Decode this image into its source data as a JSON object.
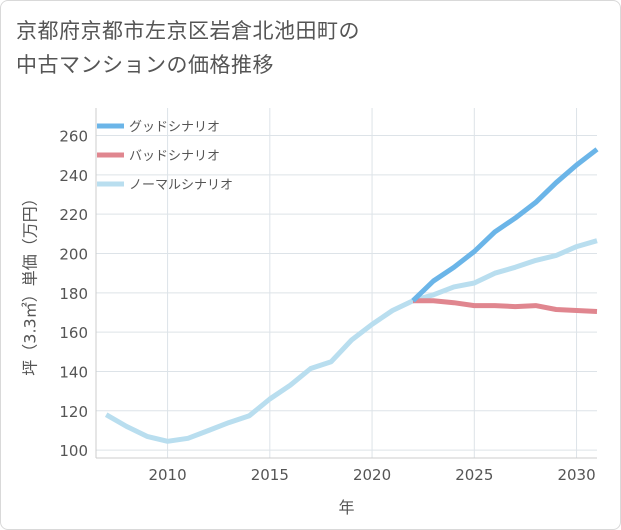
{
  "title": {
    "line1": "京都府京都市左京区岩倉北池田町の",
    "line2": "中古マンションの価格推移"
  },
  "chart_data": {
    "type": "line",
    "title": "京都府京都市左京区岩倉北池田町の中古マンションの価格推移",
    "xlabel": "年",
    "ylabel": "坪（3.3㎡）単価（万円）",
    "xlim": [
      2006.5,
      2031
    ],
    "ylim": [
      96,
      274
    ],
    "xticks": [
      2010,
      2015,
      2020,
      2025,
      2030
    ],
    "yticks": [
      100,
      120,
      140,
      160,
      180,
      200,
      220,
      240,
      260
    ],
    "grid": true,
    "legend_position": "top-left",
    "series": [
      {
        "name": "グッドシナリオ",
        "color": "#6bb5e8",
        "x": [
          2022,
          2023,
          2024,
          2025,
          2026,
          2027,
          2028,
          2029,
          2030,
          2031
        ],
        "values": [
          176,
          186,
          193,
          201,
          211,
          218,
          226,
          236,
          245,
          253
        ]
      },
      {
        "name": "バッドシナリオ",
        "color": "#e0868f",
        "x": [
          2022,
          2023,
          2024,
          2025,
          2026,
          2027,
          2028,
          2029,
          2030,
          2031
        ],
        "values": [
          176,
          176,
          175,
          173.5,
          173.5,
          173,
          173.5,
          171.5,
          171,
          170.5
        ]
      },
      {
        "name": "ノーマルシナリオ",
        "color": "#b9deef",
        "x": [
          2007,
          2008,
          2009,
          2010,
          2011,
          2012,
          2013,
          2014,
          2015,
          2016,
          2017,
          2018,
          2019,
          2020,
          2021,
          2022,
          2023,
          2024,
          2025,
          2026,
          2027,
          2028,
          2029,
          2030,
          2031
        ],
        "values": [
          118,
          112,
          107,
          104.5,
          106,
          110,
          114,
          117.5,
          126,
          133,
          141.5,
          145,
          156,
          164,
          171,
          176,
          179,
          183,
          185,
          190,
          193,
          196.5,
          199,
          203.5,
          206.5
        ]
      }
    ]
  }
}
